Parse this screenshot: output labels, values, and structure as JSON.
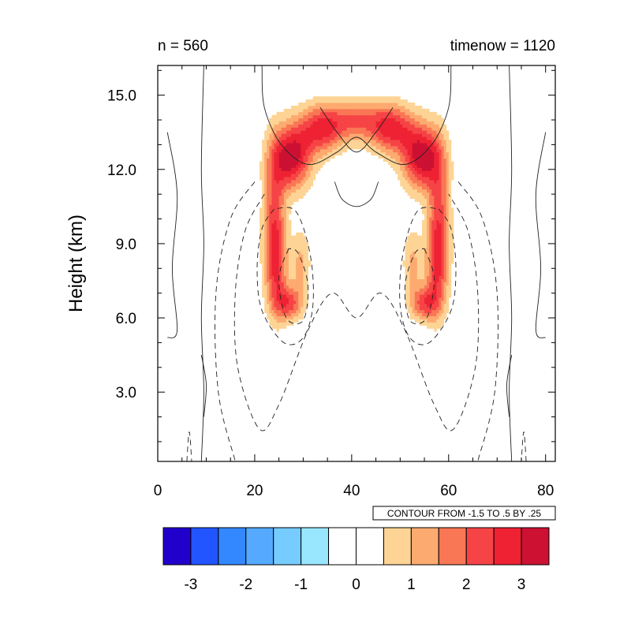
{
  "chart_data": {
    "type": "heatmap",
    "left_title": "n = 560",
    "right_title": "timenow = 1120",
    "ylabel": "Height (km)",
    "xlabel": "",
    "xlim": [
      0,
      82
    ],
    "ylim": [
      0.2,
      16.2
    ],
    "x_ticks": [
      0,
      20,
      40,
      60,
      80
    ],
    "x_tick_labels": [
      "0",
      "20",
      "40",
      "60",
      "80"
    ],
    "y_ticks": [
      3,
      6,
      9,
      12,
      15
    ],
    "y_tick_labels": [
      "3.0",
      "6.0",
      "9.0",
      "12.0",
      "15.0"
    ],
    "contour_info": "CONTOUR FROM -1.5 TO .5 BY .25",
    "colorbar": {
      "colors": [
        "#2200cc",
        "#2255ff",
        "#3388ff",
        "#55aaff",
        "#77ccff",
        "#99e6ff",
        "#ffffff",
        "#ffffff",
        "#fdd495",
        "#fdaa70",
        "#f97755",
        "#f64446",
        "#ee2233",
        "#cc1133"
      ],
      "ticks": [
        -3,
        -2,
        -1,
        0,
        1,
        2,
        3
      ],
      "tick_labels": [
        "-3",
        "-2",
        "-1",
        "0",
        "1",
        "2",
        "3"
      ]
    },
    "shaded_blobs": [
      {
        "cx": 27.5,
        "cy": 12.5,
        "sx": 2.8,
        "sy": 0.9,
        "amp": 3.3
      },
      {
        "cx": 54.5,
        "cy": 12.5,
        "sx": 2.8,
        "sy": 0.9,
        "amp": 3.3
      },
      {
        "cx": 33.5,
        "cy": 13.6,
        "sx": 3.2,
        "sy": 0.7,
        "amp": 2.4
      },
      {
        "cx": 48.5,
        "cy": 13.6,
        "sx": 3.2,
        "sy": 0.7,
        "amp": 2.4
      },
      {
        "cx": 41.0,
        "cy": 14.0,
        "sx": 4.5,
        "sy": 0.6,
        "amp": 1.9
      },
      {
        "cx": 24.0,
        "cy": 10.0,
        "sx": 1.6,
        "sy": 2.0,
        "amp": 2.0
      },
      {
        "cx": 58.0,
        "cy": 10.0,
        "sx": 1.6,
        "sy": 2.0,
        "amp": 2.0
      },
      {
        "cx": 24.5,
        "cy": 8.0,
        "sx": 1.6,
        "sy": 1.3,
        "amp": 1.6
      },
      {
        "cx": 57.5,
        "cy": 8.0,
        "sx": 1.6,
        "sy": 1.3,
        "amp": 1.6
      },
      {
        "cx": 27.0,
        "cy": 6.6,
        "sx": 2.0,
        "sy": 0.5,
        "amp": 2.1
      },
      {
        "cx": 55.0,
        "cy": 6.6,
        "sx": 2.0,
        "sy": 0.5,
        "amp": 2.1
      },
      {
        "cx": 29.5,
        "cy": 8.2,
        "sx": 1.4,
        "sy": 1.0,
        "amp": 1.1
      },
      {
        "cx": 52.5,
        "cy": 8.2,
        "sx": 1.4,
        "sy": 1.0,
        "amp": 1.1
      }
    ],
    "contour_lines": [
      {
        "style": "solid",
        "points": [
          [
            9,
            0.2
          ],
          [
            9.5,
            3
          ],
          [
            9,
            6
          ],
          [
            9.5,
            9
          ],
          [
            9,
            12
          ],
          [
            9.5,
            16.2
          ]
        ]
      },
      {
        "style": "solid",
        "points": [
          [
            73,
            0.2
          ],
          [
            72.5,
            3
          ],
          [
            73,
            6
          ],
          [
            72.5,
            9
          ],
          [
            73,
            12
          ],
          [
            72.5,
            16.2
          ]
        ]
      },
      {
        "style": "solid",
        "points": [
          [
            2,
            13.5
          ],
          [
            4,
            11
          ],
          [
            3,
            8
          ],
          [
            4,
            5.5
          ],
          [
            2,
            5.2
          ]
        ]
      },
      {
        "style": "solid",
        "points": [
          [
            80,
            13.5
          ],
          [
            78,
            11
          ],
          [
            79,
            8
          ],
          [
            78,
            5.5
          ],
          [
            80,
            5.2
          ]
        ]
      },
      {
        "style": "solid",
        "points": [
          [
            9,
            4.5
          ],
          [
            10,
            3.3
          ],
          [
            9.5,
            2
          ]
        ]
      },
      {
        "style": "solid",
        "points": [
          [
            73,
            4.5
          ],
          [
            72,
            3.3
          ],
          [
            72.5,
            2
          ]
        ]
      },
      {
        "style": "solid",
        "points": [
          [
            21.5,
            16.2
          ],
          [
            22,
            14.5
          ],
          [
            25.5,
            13
          ],
          [
            31,
            12.2
          ],
          [
            37,
            12.7
          ],
          [
            41,
            13.3
          ],
          [
            45,
            12.7
          ],
          [
            51,
            12.2
          ],
          [
            56.5,
            13
          ],
          [
            60,
            14.5
          ],
          [
            60.5,
            16.2
          ]
        ]
      },
      {
        "style": "solid",
        "points": [
          [
            33.5,
            14.5
          ],
          [
            37,
            13.5
          ],
          [
            41,
            12.7
          ],
          [
            45,
            13.5
          ],
          [
            48.5,
            14.5
          ]
        ]
      },
      {
        "style": "solid",
        "points": [
          [
            36.5,
            11.5
          ],
          [
            38,
            10.8
          ],
          [
            41,
            10.5
          ],
          [
            44,
            10.8
          ],
          [
            45.5,
            11.5
          ]
        ]
      },
      {
        "style": "dashed",
        "points": [
          [
            24,
            10.4
          ],
          [
            21.5,
            9.6
          ],
          [
            20.5,
            8
          ],
          [
            21.5,
            6.3
          ],
          [
            26,
            5
          ],
          [
            30,
            5.2
          ],
          [
            32,
            6.5
          ],
          [
            31.5,
            8.5
          ],
          [
            28.5,
            10.3
          ],
          [
            24,
            10.4
          ]
        ]
      },
      {
        "style": "dashed",
        "points": [
          [
            58,
            10.4
          ],
          [
            60.5,
            9.6
          ],
          [
            61.5,
            8
          ],
          [
            60.5,
            6.3
          ],
          [
            56,
            5
          ],
          [
            52,
            5.2
          ],
          [
            50,
            6.5
          ],
          [
            50.5,
            8.5
          ],
          [
            53.5,
            10.3
          ],
          [
            58,
            10.4
          ]
        ]
      },
      {
        "style": "dashed",
        "points": [
          [
            27,
            8.8
          ],
          [
            25,
            7.6
          ],
          [
            26.5,
            6
          ],
          [
            30,
            5.9
          ],
          [
            31,
            7.3
          ],
          [
            29,
            8.6
          ],
          [
            27,
            8.8
          ]
        ]
      },
      {
        "style": "dashed",
        "points": [
          [
            55,
            8.8
          ],
          [
            57,
            7.6
          ],
          [
            55.5,
            6
          ],
          [
            52,
            5.9
          ],
          [
            51,
            7.3
          ],
          [
            53,
            8.6
          ],
          [
            55,
            8.8
          ]
        ]
      },
      {
        "style": "dashed",
        "points": [
          [
            22,
            11
          ],
          [
            18,
            9.5
          ],
          [
            16,
            7
          ],
          [
            16.5,
            4
          ],
          [
            21,
            1.5
          ],
          [
            25,
            2.5
          ],
          [
            31,
            5.5
          ],
          [
            36,
            7
          ],
          [
            41,
            6
          ],
          [
            46,
            7
          ],
          [
            51,
            5.5
          ],
          [
            57,
            2.5
          ],
          [
            61,
            1.5
          ],
          [
            65.5,
            4
          ],
          [
            66,
            7
          ],
          [
            64,
            9.5
          ],
          [
            60,
            11
          ]
        ]
      },
      {
        "style": "dashed",
        "points": [
          [
            20,
            11.5
          ],
          [
            15,
            10
          ],
          [
            12,
            7
          ],
          [
            12.5,
            3
          ],
          [
            16,
            0.2
          ]
        ]
      },
      {
        "style": "dashed",
        "points": [
          [
            62,
            11.5
          ],
          [
            67,
            10
          ],
          [
            70,
            7
          ],
          [
            69.5,
            3
          ],
          [
            66,
            0.2
          ]
        ]
      },
      {
        "style": "dashed",
        "points": [
          [
            6,
            0.2
          ],
          [
            6.5,
            1.4
          ],
          [
            7,
            0.2
          ]
        ]
      },
      {
        "style": "dashed",
        "points": [
          [
            76,
            0.2
          ],
          [
            75.5,
            1.4
          ],
          [
            75,
            0.2
          ]
        ]
      }
    ]
  }
}
